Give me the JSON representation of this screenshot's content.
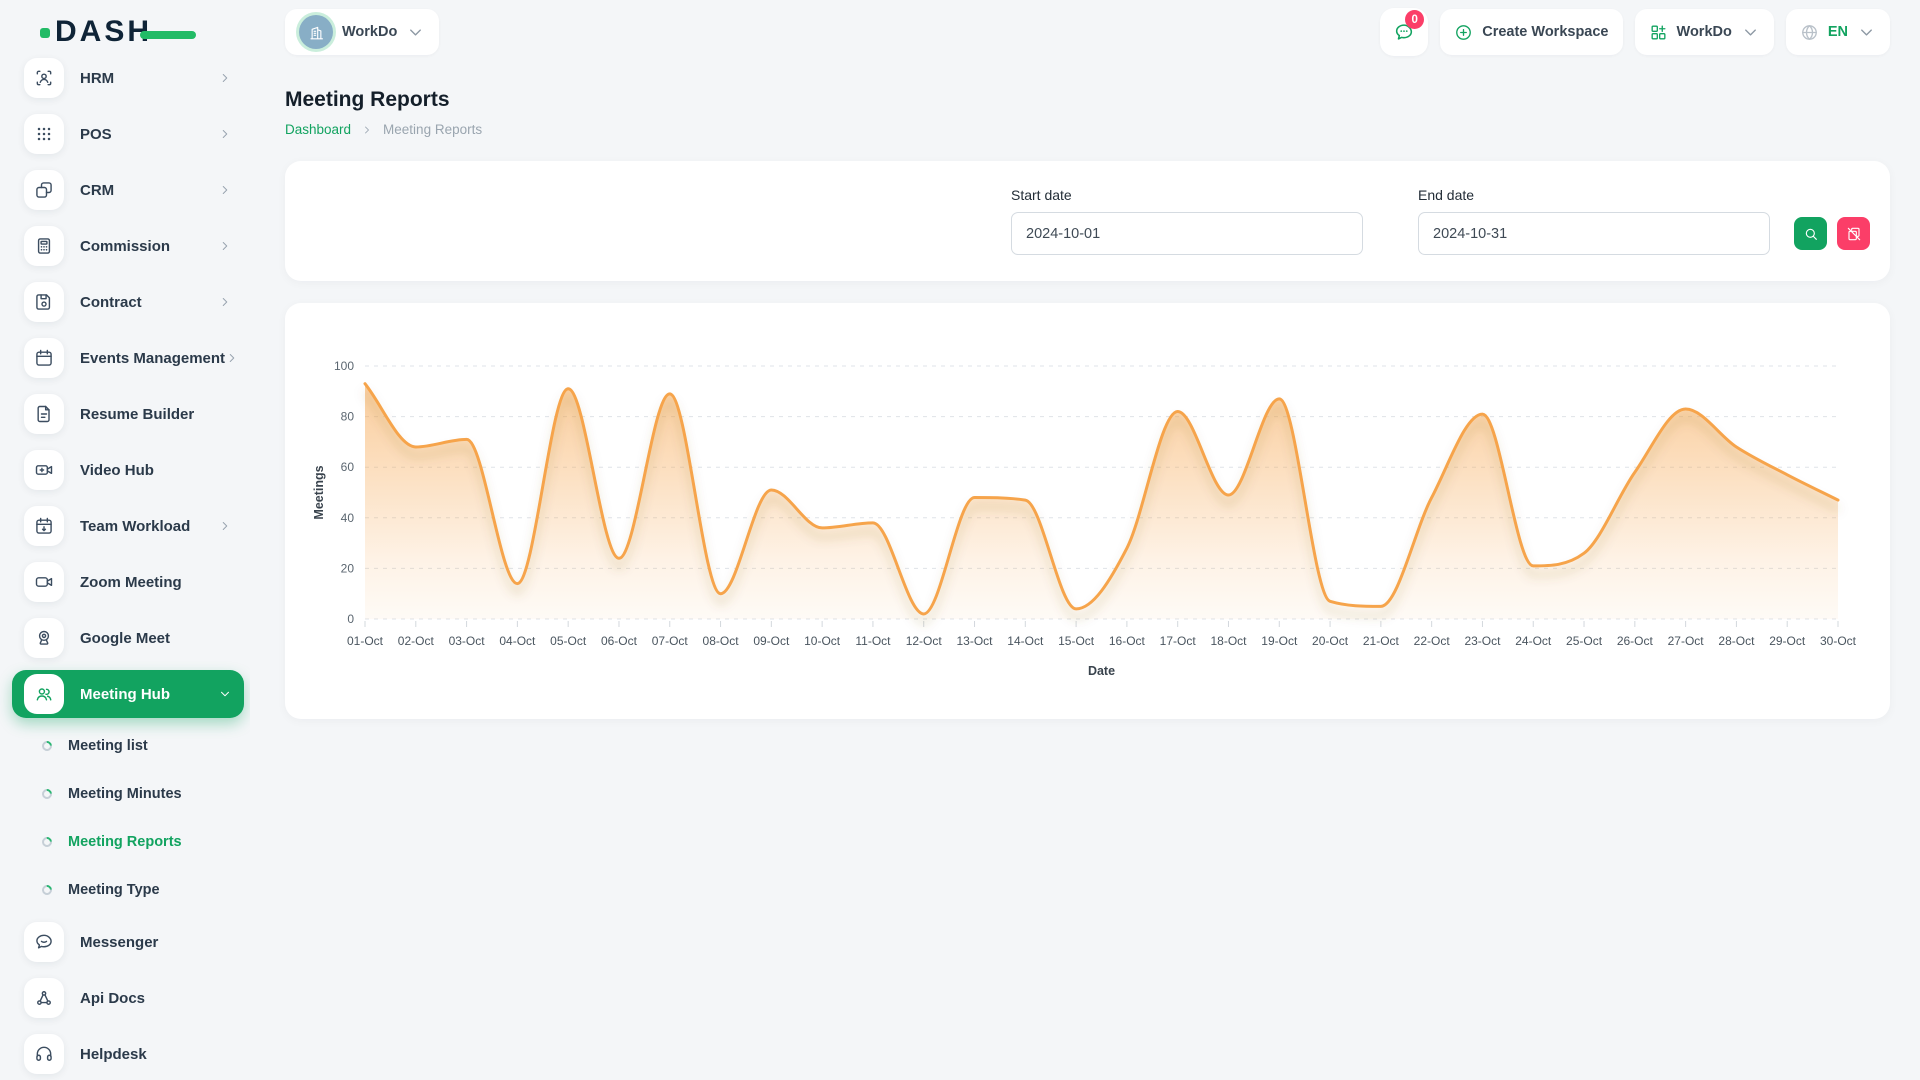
{
  "header": {
    "logo_text": "DASH",
    "workspace_name": "WorkDo",
    "messages_badge": "0",
    "create_workspace_label": "Create Workspace",
    "workspace_switcher_label": "WorkDo",
    "language": "EN"
  },
  "sidebar": {
    "items": [
      {
        "label": "HRM",
        "icon": "hrm",
        "chevron": "right"
      },
      {
        "label": "POS",
        "icon": "pos",
        "chevron": "right"
      },
      {
        "label": "CRM",
        "icon": "crm",
        "chevron": "right"
      },
      {
        "label": "Commission",
        "icon": "commission",
        "chevron": "right"
      },
      {
        "label": "Contract",
        "icon": "contract",
        "chevron": "right"
      },
      {
        "label": "Events Management",
        "icon": "events",
        "chevron": "right"
      },
      {
        "label": "Resume Builder",
        "icon": "resume"
      },
      {
        "label": "Video Hub",
        "icon": "video-hub"
      },
      {
        "label": "Team Workload",
        "icon": "team-workload",
        "chevron": "right"
      },
      {
        "label": "Zoom Meeting",
        "icon": "zoom-meeting"
      },
      {
        "label": "Google Meet",
        "icon": "google-meet"
      },
      {
        "label": "Meeting Hub",
        "icon": "meeting-hub",
        "chevron": "down",
        "active": true
      },
      {
        "label": "Meeting list",
        "type": "sub"
      },
      {
        "label": "Meeting Minutes",
        "type": "sub"
      },
      {
        "label": "Meeting Reports",
        "type": "sub",
        "active": true
      },
      {
        "label": "Meeting Type",
        "type": "sub"
      },
      {
        "label": "Messenger",
        "icon": "messenger"
      },
      {
        "label": "Api Docs",
        "icon": "api-docs"
      },
      {
        "label": "Helpdesk",
        "icon": "helpdesk"
      }
    ]
  },
  "page": {
    "title": "Meeting Reports",
    "breadcrumb": [
      "Dashboard",
      "Meeting Reports"
    ]
  },
  "filter": {
    "start_label": "Start date",
    "start_value": "2024-10-01",
    "end_label": "End date",
    "end_value": "2024-10-31"
  },
  "chart_data": {
    "type": "area",
    "title": "",
    "xlabel": "Date",
    "ylabel": "Meetings",
    "x": [
      "01-Oct",
      "02-Oct",
      "03-Oct",
      "04-Oct",
      "05-Oct",
      "06-Oct",
      "07-Oct",
      "08-Oct",
      "09-Oct",
      "10-Oct",
      "11-Oct",
      "12-Oct",
      "13-Oct",
      "14-Oct",
      "15-Oct",
      "16-Oct",
      "17-Oct",
      "18-Oct",
      "19-Oct",
      "20-Oct",
      "21-Oct",
      "22-Oct",
      "23-Oct",
      "24-Oct",
      "25-Oct",
      "26-Oct",
      "27-Oct",
      "28-Oct",
      "29-Oct",
      "30-Oct"
    ],
    "values": [
      93,
      68,
      71,
      14,
      91,
      24,
      89,
      10,
      51,
      36,
      38,
      2,
      48,
      47,
      4,
      28,
      82,
      49,
      87,
      7,
      5,
      48,
      81,
      21,
      26,
      58,
      83,
      68,
      57,
      47
    ],
    "ylim": [
      0,
      100
    ],
    "yticks": [
      0,
      20,
      40,
      60,
      80,
      100
    ],
    "grid": "horizontal-dashed",
    "legend": "none",
    "smooth": true,
    "line_color": "#F6A44B",
    "fill_color": "#F6A44B"
  },
  "colors": {
    "accent_green": "#12A360",
    "logo_green": "#22BB66",
    "danger_pink": "#FB3E68",
    "navy_text": "#0F2437",
    "page_bg": "#F4F6F8"
  }
}
